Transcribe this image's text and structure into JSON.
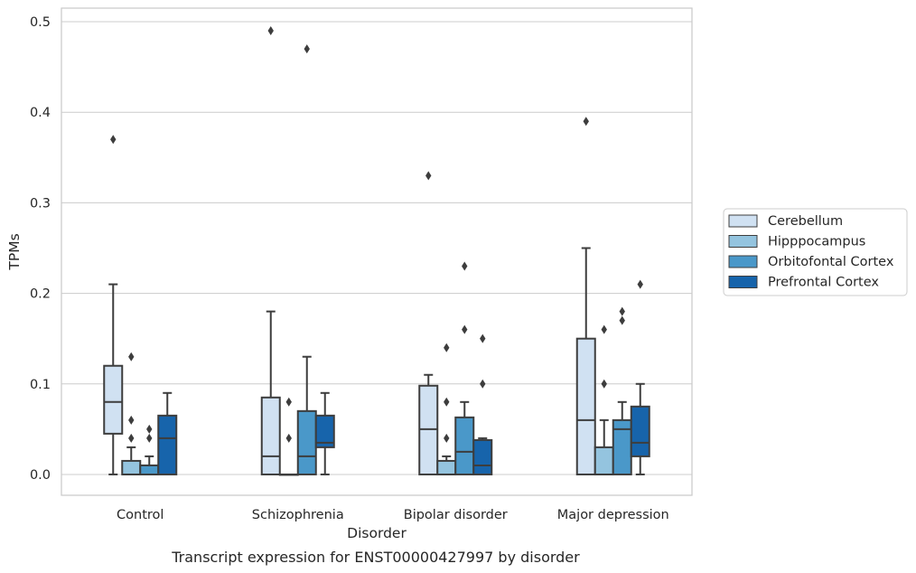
{
  "chart_data": {
    "type": "box",
    "caption": "Transcript expression for ENST00000427997 by disorder",
    "xlabel": "Disorder",
    "ylabel": "TPMs",
    "ylim": [
      -0.023,
      0.515
    ],
    "yticks": [
      0.0,
      0.1,
      0.2,
      0.3,
      0.4,
      0.5
    ],
    "ytick_labels": [
      "0.0",
      "0.1",
      "0.2",
      "0.3",
      "0.4",
      "0.5"
    ],
    "grid": true,
    "legend_position": "right",
    "categories": [
      "Control",
      "Schizophrenia",
      "Bipolar disorder",
      "Major depression"
    ],
    "series": [
      {
        "name": "Cerebellum",
        "color": "#d0e1f2",
        "boxes": [
          {
            "whislo": 0.0,
            "q1": 0.045,
            "med": 0.08,
            "q3": 0.12,
            "whishi": 0.21,
            "fliers": [
              0.37
            ]
          },
          {
            "whislo": 0.0,
            "q1": 0.0,
            "med": 0.02,
            "q3": 0.085,
            "whishi": 0.18,
            "fliers": [
              0.49
            ]
          },
          {
            "whislo": 0.0,
            "q1": 0.0,
            "med": 0.05,
            "q3": 0.098,
            "whishi": 0.11,
            "fliers": [
              0.33
            ]
          },
          {
            "whislo": 0.0,
            "q1": 0.0,
            "med": 0.06,
            "q3": 0.15,
            "whishi": 0.25,
            "fliers": [
              0.39
            ]
          }
        ]
      },
      {
        "name": "Hipppocampus",
        "color": "#94c4df",
        "boxes": [
          {
            "whislo": 0.0,
            "q1": 0.0,
            "med": 0.0,
            "q3": 0.015,
            "whishi": 0.03,
            "fliers": [
              0.04,
              0.06,
              0.13
            ]
          },
          {
            "whislo": 0.0,
            "q1": 0.0,
            "med": 0.0,
            "q3": 0.0,
            "whishi": 0.0,
            "fliers": [
              0.04,
              0.08
            ]
          },
          {
            "whislo": 0.0,
            "q1": 0.0,
            "med": 0.0,
            "q3": 0.015,
            "whishi": 0.02,
            "fliers": [
              0.04,
              0.08,
              0.14
            ]
          },
          {
            "whislo": 0.0,
            "q1": 0.0,
            "med": 0.0,
            "q3": 0.03,
            "whishi": 0.06,
            "fliers": [
              0.1,
              0.16
            ]
          }
        ]
      },
      {
        "name": "Orbitofontal Cortex",
        "color": "#4a98c9",
        "boxes": [
          {
            "whislo": 0.0,
            "q1": 0.0,
            "med": 0.0,
            "q3": 0.01,
            "whishi": 0.02,
            "fliers": [
              0.04,
              0.05
            ]
          },
          {
            "whislo": 0.0,
            "q1": 0.0,
            "med": 0.02,
            "q3": 0.07,
            "whishi": 0.13,
            "fliers": [
              0.47
            ]
          },
          {
            "whislo": 0.0,
            "q1": 0.0,
            "med": 0.025,
            "q3": 0.063,
            "whishi": 0.08,
            "fliers": [
              0.16,
              0.23
            ]
          },
          {
            "whislo": 0.0,
            "q1": 0.0,
            "med": 0.05,
            "q3": 0.06,
            "whishi": 0.08,
            "fliers": [
              0.17,
              0.18
            ]
          }
        ]
      },
      {
        "name": "Prefrontal Cortex",
        "color": "#1764ab",
        "boxes": [
          {
            "whislo": 0.0,
            "q1": 0.0,
            "med": 0.04,
            "q3": 0.065,
            "whishi": 0.09,
            "fliers": []
          },
          {
            "whislo": 0.0,
            "q1": 0.03,
            "med": 0.035,
            "q3": 0.065,
            "whishi": 0.09,
            "fliers": []
          },
          {
            "whislo": 0.0,
            "q1": 0.0,
            "med": 0.01,
            "q3": 0.038,
            "whishi": 0.04,
            "fliers": [
              0.1,
              0.15
            ]
          },
          {
            "whislo": 0.0,
            "q1": 0.02,
            "med": 0.035,
            "q3": 0.075,
            "whishi": 0.1,
            "fliers": [
              0.21
            ]
          }
        ]
      }
    ],
    "colors": {
      "grid": "#cccccc",
      "frame": "#cccccc",
      "box_edge": "#3d3d3d",
      "text": "#262626",
      "legend_border": "#cccccc"
    }
  }
}
